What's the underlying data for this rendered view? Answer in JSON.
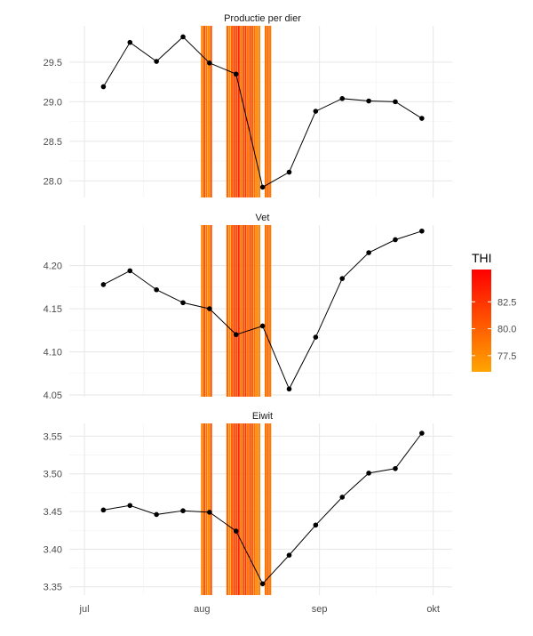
{
  "chart_data": {
    "type": "line",
    "x_labels": [
      "jul",
      "aug",
      "sep",
      "okt"
    ],
    "x_label_days": [
      0,
      31,
      62,
      92
    ],
    "thi_band_days": [
      31.0,
      31.6,
      32.2,
      32.8,
      33.4,
      37.7,
      38.3,
      38.9,
      39.5,
      40.1,
      40.7,
      41.3,
      41.9,
      42.5,
      43.1,
      43.7,
      44.3,
      44.9,
      45.5,
      46.1,
      47.8,
      48.4,
      49.0
    ],
    "thi_band_values": [
      78.0,
      80.5,
      79.0,
      77.5,
      81.0,
      79.5,
      78.0,
      80.0,
      82.0,
      81.0,
      83.0,
      79.0,
      80.5,
      82.5,
      78.5,
      81.5,
      80.0,
      79.0,
      77.8,
      78.2,
      79.0,
      80.0,
      78.5
    ],
    "panels": [
      {
        "title": "Productie per dier",
        "ylim": [
          27.79,
          29.96
        ],
        "yticks": [
          28.0,
          28.5,
          29.0,
          29.5
        ],
        "ytick_labels": [
          "28.0",
          "28.5",
          "29.0",
          "29.5"
        ],
        "points": [
          [
            5,
            29.19
          ],
          [
            12,
            29.75
          ],
          [
            19,
            29.51
          ],
          [
            26,
            29.82
          ],
          [
            33,
            29.49
          ],
          [
            40,
            29.35
          ],
          [
            47,
            27.92
          ],
          [
            54,
            28.11
          ],
          [
            61,
            28.88
          ],
          [
            68,
            29.04
          ],
          [
            75,
            29.01
          ],
          [
            82,
            29.0
          ],
          [
            89,
            28.79
          ]
        ]
      },
      {
        "title": "Vet",
        "ylim": [
          4.048,
          4.247
        ],
        "yticks": [
          4.05,
          4.1,
          4.15,
          4.2
        ],
        "ytick_labels": [
          "4.05",
          "4.10",
          "4.15",
          "4.20"
        ],
        "points": [
          [
            5,
            4.178
          ],
          [
            12,
            4.194
          ],
          [
            19,
            4.172
          ],
          [
            26,
            4.157
          ],
          [
            33,
            4.15
          ],
          [
            40,
            4.12
          ],
          [
            47,
            4.13
          ],
          [
            54,
            4.057
          ],
          [
            61,
            4.117
          ],
          [
            68,
            4.185
          ],
          [
            75,
            4.215
          ],
          [
            82,
            4.23
          ],
          [
            89,
            4.24
          ]
        ]
      },
      {
        "title": "Eiwit",
        "ylim": [
          3.339,
          3.567
        ],
        "yticks": [
          3.35,
          3.4,
          3.45,
          3.5,
          3.55
        ],
        "ytick_labels": [
          "3.35",
          "3.40",
          "3.45",
          "3.50",
          "3.55"
        ],
        "points": [
          [
            5,
            3.452
          ],
          [
            12,
            3.458
          ],
          [
            19,
            3.446
          ],
          [
            26,
            3.451
          ],
          [
            33,
            3.449
          ],
          [
            40,
            3.424
          ],
          [
            47,
            3.354
          ],
          [
            54,
            3.392
          ],
          [
            61,
            3.432
          ],
          [
            68,
            3.469
          ],
          [
            75,
            3.501
          ],
          [
            82,
            3.507
          ],
          [
            89,
            3.554
          ]
        ]
      }
    ],
    "legend": {
      "title": "THI",
      "min": 76.0,
      "max": 85.5,
      "ticks": [
        77.5,
        80.0,
        82.5
      ],
      "tick_labels": [
        "77.5",
        "80.0",
        "82.5"
      ],
      "color_low": "#FFA500",
      "color_high": "#FF0000"
    }
  }
}
